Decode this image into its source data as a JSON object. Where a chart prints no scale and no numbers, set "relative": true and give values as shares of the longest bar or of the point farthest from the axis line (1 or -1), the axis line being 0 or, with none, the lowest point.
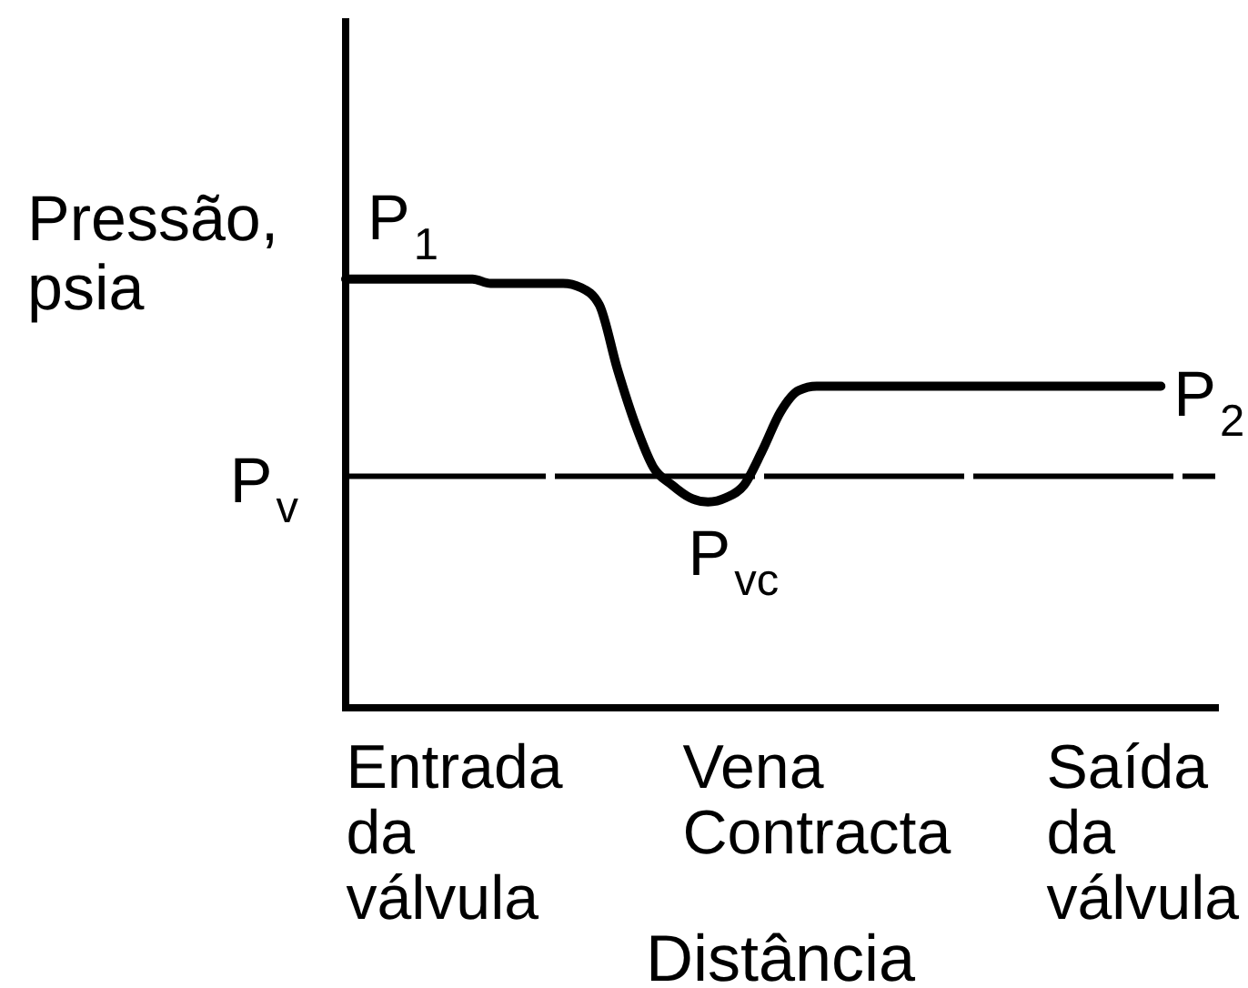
{
  "chart_data": {
    "type": "line",
    "ylabel": "Pressão, psia",
    "xlabel": "Distância",
    "categories": [
      null,
      null,
      null,
      null,
      null,
      null,
      "Entrada da válvula",
      null,
      null,
      null,
      null,
      null,
      null,
      null,
      null,
      null,
      null,
      null,
      null,
      null,
      null,
      null,
      null,
      null,
      null,
      null,
      "Vena Contracta",
      null,
      null,
      null,
      null,
      null,
      null,
      null,
      null,
      null,
      null,
      null,
      null,
      null,
      null,
      null,
      null,
      null,
      "Saída da válvula",
      null,
      null,
      null,
      null
    ],
    "relative": true,
    "marker": "none",
    "line_style": "solid",
    "series": [
      {
        "color": "#000000",
        "values": [
          1,
          1,
          1,
          1,
          1,
          1,
          1,
          1,
          0.99,
          0.99,
          0.99,
          0.99,
          0.99,
          0.98,
          0.94,
          0.79,
          0.66,
          0.56,
          0.52,
          0.49,
          0.48,
          0.49,
          0.52,
          0.6,
          0.69,
          0.74,
          0.75,
          0.75,
          0.75,
          0.75,
          0.75,
          0.75,
          0.75,
          0.75,
          0.75,
          0.75,
          0.75,
          0.75,
          0.75,
          0.75,
          0.75,
          0.75,
          0.75,
          0.75,
          0.75,
          0.75,
          null,
          null,
          null
        ]
      }
    ],
    "annotations": [
      {
        "text": "P$_{1}$",
        "y": 1
      },
      {
        "text": "P$_{vc}$",
        "y": 0.48
      },
      "P$_{2}$"
    ],
    "ref_lines": [
      {
        "axis": "y",
        "value": 0.54,
        "label": "P$_{v}$",
        "color": "#000000",
        "line_style": "dashed"
      }
    ]
  }
}
